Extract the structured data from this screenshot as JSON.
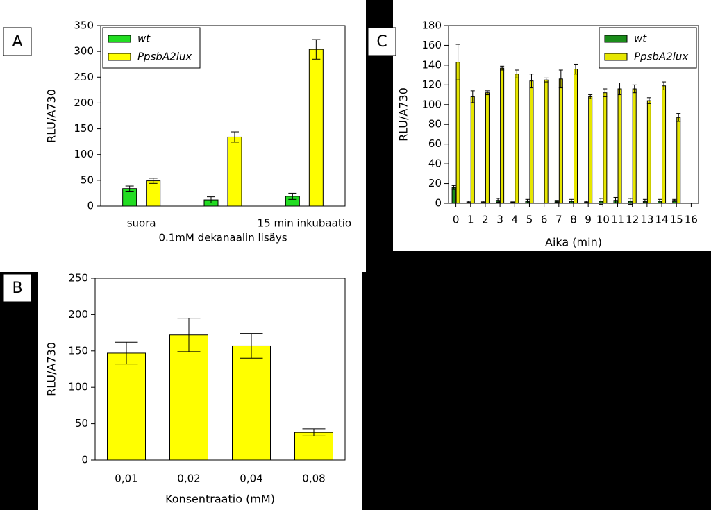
{
  "chart_data": [
    {
      "type": "bar",
      "panel": "A",
      "ylabel": "RLU/A730",
      "categories": [
        "suora",
        "0.1mM dekanaalin lisäys",
        "15 min inkubaatio"
      ],
      "series": [
        {
          "name": "wt",
          "color": "#22dd22",
          "values": [
            34,
            12,
            19
          ],
          "errors": [
            5,
            6,
            6
          ]
        },
        {
          "name": "PpsbA2lux",
          "color": "#ffff00",
          "values": [
            49,
            134,
            304
          ],
          "errors": [
            5,
            10,
            19
          ]
        }
      ],
      "ylim": [
        0,
        350
      ],
      "yticks": [
        0,
        50,
        100,
        150,
        200,
        250,
        300,
        350
      ],
      "legend": "upper left"
    },
    {
      "type": "bar",
      "panel": "B",
      "ylabel": "RLU/A730",
      "xlabel": "Konsentraatio (mM)",
      "categories": [
        "0,01",
        "0,02",
        "0,04",
        "0,08"
      ],
      "series": [
        {
          "name": null,
          "color": "#ffff00",
          "values": [
            147,
            172,
            157,
            38
          ],
          "errors": [
            15,
            23,
            17,
            5
          ]
        }
      ],
      "ylim": [
        0,
        250
      ],
      "yticks": [
        0,
        50,
        100,
        150,
        200,
        250
      ]
    },
    {
      "type": "bar",
      "panel": "C",
      "ylabel": "RLU/A730",
      "xlabel": "Aika (min)",
      "x": [
        0,
        1,
        2,
        3,
        4,
        5,
        6,
        7,
        8,
        9,
        10,
        11,
        12,
        13,
        14,
        15
      ],
      "series": [
        {
          "name": "wt",
          "color": "#1a8c1a",
          "values": [
            16,
            1,
            1,
            3,
            1,
            2,
            0,
            2,
            2,
            1,
            2,
            3,
            2,
            2,
            2,
            3
          ],
          "errors": [
            2,
            1,
            1,
            2,
            0.5,
            2,
            0,
            1,
            2,
            1,
            3,
            3,
            3,
            2,
            2,
            1
          ]
        },
        {
          "name": "PpsbA2lux",
          "color": "#e6e600",
          "values": [
            143,
            108,
            112,
            137,
            131,
            124,
            125,
            126,
            136,
            108,
            112,
            116,
            116,
            104,
            119,
            87
          ],
          "errors": [
            18,
            6,
            2,
            2,
            4,
            7,
            2,
            9,
            5,
            2,
            4,
            6,
            4,
            3,
            4,
            4
          ]
        }
      ],
      "xlim": [
        -0.5,
        16.5
      ],
      "xticks": [
        0,
        1,
        2,
        3,
        4,
        5,
        6,
        7,
        8,
        9,
        10,
        11,
        12,
        13,
        14,
        15,
        16
      ],
      "ylim": [
        0,
        180
      ],
      "yticks": [
        0,
        20,
        40,
        60,
        80,
        100,
        120,
        140,
        160,
        180
      ],
      "legend": "upper right"
    }
  ]
}
